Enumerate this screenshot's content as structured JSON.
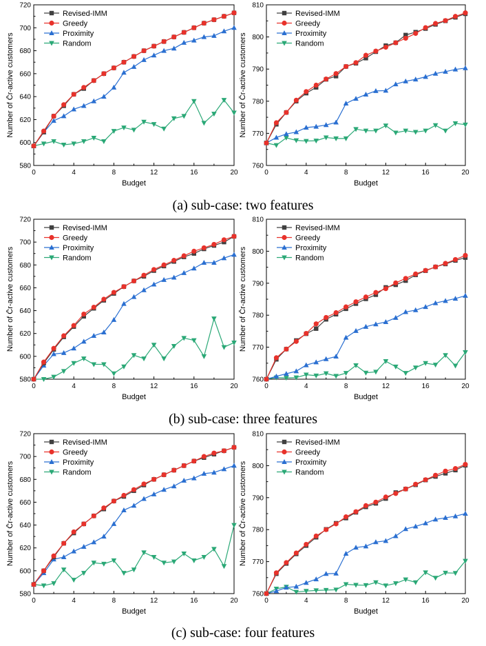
{
  "colors": {
    "Revised-IMM": "#404040",
    "Greedy": "#e8322b",
    "Proximity": "#2a6fd1",
    "Random": "#2aa876"
  },
  "markers": {
    "Revised-IMM": "square",
    "Greedy": "circle",
    "Proximity": "triangle-up",
    "Random": "triangle-down"
  },
  "captions": [
    "(a) sub-case: two features",
    "(b) sub-case: three features",
    "(c) sub-case: four features"
  ],
  "chart_data": [
    {
      "type": "line",
      "xlabel": "Budget",
      "ylabel": "Number of C̄r-active customers",
      "xlim": [
        0,
        20
      ],
      "ylim": [
        580,
        720
      ],
      "xticks": [
        0,
        4,
        8,
        12,
        16,
        20
      ],
      "yticks": [
        580,
        600,
        620,
        640,
        660,
        680,
        700,
        720
      ],
      "legend_position": "top-left",
      "grid": false,
      "x": [
        0,
        1,
        2,
        3,
        4,
        5,
        6,
        7,
        8,
        9,
        10,
        11,
        12,
        13,
        14,
        15,
        16,
        17,
        18,
        19,
        20
      ],
      "series": [
        {
          "name": "Revised-IMM",
          "values": [
            597,
            609,
            623,
            632,
            642,
            647,
            654,
            660,
            665,
            670,
            675,
            680,
            684,
            688,
            692,
            696,
            700,
            704,
            707,
            710,
            713
          ]
        },
        {
          "name": "Greedy",
          "values": [
            597,
            610,
            623,
            633,
            642,
            648,
            654,
            660,
            665,
            670,
            675,
            680,
            684,
            688,
            692,
            696,
            700,
            704,
            707,
            710,
            713
          ]
        },
        {
          "name": "Proximity",
          "values": [
            597,
            609,
            619,
            623,
            629,
            632,
            636,
            640,
            648,
            661,
            666,
            672,
            676,
            680,
            682,
            687,
            689,
            692,
            693,
            697,
            700
          ]
        },
        {
          "name": "Random",
          "values": [
            597,
            599,
            601,
            598,
            599,
            601,
            604,
            601,
            610,
            613,
            611,
            618,
            616,
            612,
            621,
            623,
            636,
            617,
            625,
            637,
            626
          ]
        }
      ]
    },
    {
      "type": "line",
      "xlabel": "Budget",
      "ylabel": "Number of C̄r-active customers",
      "xlim": [
        0,
        20
      ],
      "ylim": [
        760,
        810
      ],
      "xticks": [
        0,
        4,
        8,
        12,
        16,
        20
      ],
      "yticks": [
        760,
        770,
        780,
        790,
        800,
        810
      ],
      "legend_position": "top-left",
      "grid": false,
      "x": [
        0,
        1,
        2,
        3,
        4,
        5,
        6,
        7,
        8,
        9,
        10,
        11,
        12,
        13,
        14,
        15,
        16,
        17,
        18,
        19,
        20
      ],
      "series": [
        {
          "name": "Revised-IMM",
          "values": [
            767,
            772.8,
            776.5,
            780,
            782.5,
            784.3,
            786.8,
            787.8,
            790.8,
            791.8,
            793.4,
            795.4,
            797.3,
            798.2,
            800.6,
            801.5,
            802.6,
            803.9,
            805,
            806.1,
            807.2
          ]
        },
        {
          "name": "Greedy",
          "values": [
            767,
            773.3,
            776.5,
            780.3,
            783,
            785,
            786.9,
            788.6,
            790.8,
            792,
            794.3,
            795.6,
            796.8,
            798.2,
            799.6,
            801.1,
            802.9,
            804.2,
            805.1,
            806.4,
            807.5
          ]
        },
        {
          "name": "Proximity",
          "values": [
            767,
            768.7,
            769.8,
            770.4,
            771.8,
            772.1,
            772.6,
            773.4,
            779.3,
            780.8,
            782.1,
            783.2,
            783.3,
            785.3,
            786.2,
            786.8,
            787.6,
            788.6,
            789.2,
            789.9,
            790.3
          ]
        },
        {
          "name": "Random",
          "values": [
            767,
            766.3,
            768.6,
            767.8,
            767.6,
            767.7,
            768.7,
            768.4,
            768.4,
            771.3,
            770.8,
            770.8,
            772.4,
            770.2,
            770.8,
            770.4,
            770.8,
            772.5,
            770.8,
            773.1,
            772.7
          ]
        }
      ]
    },
    {
      "type": "line",
      "xlabel": "Budget",
      "ylabel": "Number of C̄r-active customers",
      "xlim": [
        0,
        20
      ],
      "ylim": [
        580,
        720
      ],
      "xticks": [
        0,
        4,
        8,
        12,
        16,
        20
      ],
      "yticks": [
        580,
        600,
        620,
        640,
        660,
        680,
        700,
        720
      ],
      "legend_position": "top-left",
      "grid": false,
      "x": [
        0,
        1,
        2,
        3,
        4,
        5,
        6,
        7,
        8,
        9,
        10,
        11,
        12,
        13,
        14,
        15,
        16,
        17,
        18,
        19,
        20
      ],
      "series": [
        {
          "name": "Revised-IMM",
          "values": [
            580,
            594,
            606,
            617,
            626,
            635,
            642,
            649,
            655,
            661,
            666,
            670,
            675,
            679,
            683,
            687,
            690,
            694,
            697,
            700,
            705
          ]
        },
        {
          "name": "Greedy",
          "values": [
            580,
            595,
            607,
            618,
            627,
            637,
            643,
            650,
            656,
            661,
            666,
            671,
            676,
            680,
            684,
            688,
            692,
            695,
            698,
            702,
            705
          ]
        },
        {
          "name": "Proximity",
          "values": [
            580,
            592,
            602,
            603,
            607,
            613,
            618,
            621,
            632,
            646,
            652,
            658,
            663,
            667,
            669,
            673,
            677,
            682,
            682,
            686,
            689
          ]
        },
        {
          "name": "Random",
          "values": [
            580,
            580,
            582,
            587,
            594,
            598,
            593,
            593,
            585,
            591,
            601,
            598,
            610,
            598,
            609,
            616,
            614,
            600,
            633,
            608,
            612
          ]
        }
      ]
    },
    {
      "type": "line",
      "xlabel": "Budget",
      "ylabel": "Number of C̄r-active customers",
      "xlim": [
        0,
        20
      ],
      "ylim": [
        760,
        810
      ],
      "xticks": [
        0,
        4,
        8,
        12,
        16,
        20
      ],
      "yticks": [
        760,
        770,
        780,
        790,
        800,
        810
      ],
      "legend_position": "top-left",
      "grid": false,
      "x": [
        0,
        1,
        2,
        3,
        4,
        5,
        6,
        7,
        8,
        9,
        10,
        11,
        12,
        13,
        14,
        15,
        16,
        17,
        18,
        19,
        20
      ],
      "series": [
        {
          "name": "Revised-IMM",
          "values": [
            760,
            766.2,
            769.4,
            772.1,
            774.2,
            775.8,
            778.7,
            780.3,
            782,
            783.6,
            785.1,
            786.4,
            788.7,
            789.5,
            790.8,
            792.6,
            793.9,
            795.1,
            796,
            797.1,
            798
          ]
        },
        {
          "name": "Greedy",
          "values": [
            760,
            766.7,
            769.4,
            771.8,
            774.3,
            777.3,
            779.3,
            780.8,
            782.6,
            784.2,
            785.7,
            787.1,
            788.3,
            790.1,
            791.5,
            792.9,
            794,
            795.1,
            796.2,
            797.4,
            798.7
          ]
        },
        {
          "name": "Proximity",
          "values": [
            760,
            760.9,
            761.7,
            762.5,
            764.4,
            765.3,
            766.3,
            767.1,
            773,
            775.1,
            776.4,
            777.2,
            777.9,
            779.2,
            781,
            781.6,
            782.6,
            783.8,
            784.5,
            785.2,
            786.1
          ]
        },
        {
          "name": "Random",
          "values": [
            760,
            760.5,
            760.4,
            760.5,
            761.4,
            761.1,
            761.8,
            761,
            761.9,
            764.3,
            762,
            762.3,
            765.6,
            763.9,
            761.9,
            763.6,
            765,
            764.5,
            767.5,
            764.2,
            768.4
          ]
        }
      ]
    },
    {
      "type": "line",
      "xlabel": "Budget",
      "ylabel": "Number of C̄r-active customers",
      "xlim": [
        0,
        20
      ],
      "ylim": [
        580,
        720
      ],
      "xticks": [
        0,
        4,
        8,
        12,
        16,
        20
      ],
      "yticks": [
        580,
        600,
        620,
        640,
        660,
        680,
        700,
        720
      ],
      "legend_position": "top-left",
      "grid": false,
      "x": [
        0,
        1,
        2,
        3,
        4,
        5,
        6,
        7,
        8,
        9,
        10,
        11,
        12,
        13,
        14,
        15,
        16,
        17,
        18,
        19,
        20
      ],
      "series": [
        {
          "name": "Revised-IMM",
          "values": [
            588,
            600,
            612,
            624,
            633,
            641,
            648,
            654,
            661,
            665,
            670,
            675,
            680,
            684,
            688,
            692,
            696,
            699,
            702,
            705,
            708
          ]
        },
        {
          "name": "Greedy",
          "values": [
            588,
            600,
            613,
            624,
            634,
            641,
            648,
            655,
            661,
            666,
            671,
            676,
            680,
            684,
            688,
            692,
            696,
            700,
            703,
            705,
            708
          ]
        },
        {
          "name": "Proximity",
          "values": [
            588,
            598,
            610,
            612,
            617,
            621,
            625,
            630,
            641,
            653,
            657,
            663,
            667,
            671,
            674,
            679,
            681,
            685,
            686,
            689,
            692
          ]
        },
        {
          "name": "Random",
          "values": [
            588,
            587,
            589,
            601,
            592,
            598,
            607,
            606,
            609,
            598,
            601,
            616,
            612,
            607,
            608,
            615,
            609,
            612,
            619,
            604,
            640
          ]
        }
      ]
    },
    {
      "type": "line",
      "xlabel": "Budget",
      "ylabel": "Number of C̄r-active customers",
      "xlim": [
        0,
        20
      ],
      "ylim": [
        760,
        810
      ],
      "xticks": [
        0,
        4,
        8,
        12,
        16,
        20
      ],
      "yticks": [
        760,
        770,
        780,
        790,
        800,
        810
      ],
      "legend_position": "top-left",
      "grid": false,
      "x": [
        0,
        1,
        2,
        3,
        4,
        5,
        6,
        7,
        8,
        9,
        10,
        11,
        12,
        13,
        14,
        15,
        16,
        17,
        18,
        19,
        20
      ],
      "series": [
        {
          "name": "Revised-IMM",
          "values": [
            760,
            766.2,
            769.4,
            772.4,
            775,
            777.6,
            780.1,
            782,
            783.6,
            785.4,
            787.1,
            788.2,
            789.7,
            791.6,
            792.7,
            794,
            795.5,
            796.6,
            797.6,
            798.6,
            800.1
          ]
        },
        {
          "name": "Greedy",
          "values": [
            760,
            766.5,
            769.7,
            772.7,
            775.4,
            778,
            780,
            781.8,
            784,
            785.6,
            787.5,
            788.6,
            790.2,
            791.3,
            792.7,
            794.2,
            795.6,
            797,
            798.3,
            799.1,
            800.4
          ]
        },
        {
          "name": "Proximity",
          "values": [
            760,
            760.8,
            761.9,
            762.2,
            763.4,
            764.5,
            766.2,
            766.3,
            772.5,
            774.4,
            774.8,
            776.1,
            776.5,
            778,
            780.2,
            781,
            782,
            783.2,
            783.7,
            784.2,
            785
          ]
        },
        {
          "name": "Random",
          "values": [
            760,
            761.5,
            762.1,
            760.5,
            760.8,
            761,
            761.1,
            761.2,
            762.9,
            762.7,
            762.6,
            763.5,
            762.5,
            763.2,
            764.4,
            763.5,
            766.6,
            764.9,
            766.5,
            766.4,
            770.2
          ]
        }
      ]
    }
  ]
}
